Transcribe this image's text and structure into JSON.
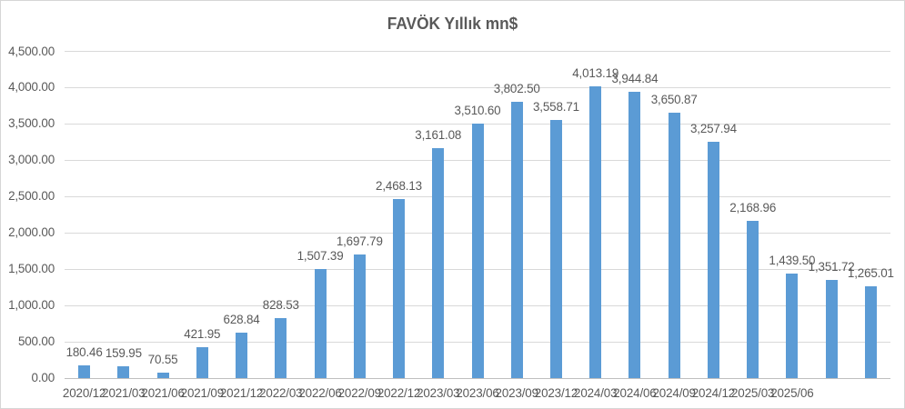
{
  "chart_data": {
    "type": "bar",
    "title": "FAVÖK Yıllık mn$",
    "xlabel": "",
    "ylabel": "",
    "categories": [
      "2020/12",
      "2021/03",
      "2021/06",
      "2021/09",
      "2021/12",
      "2022/03",
      "2022/06",
      "2022/09",
      "2022/12",
      "2023/03",
      "2023/06",
      "2023/09",
      "2023/12",
      "2024/03",
      "2024/06",
      "2024/09",
      "2024/12",
      "2025/03",
      "2025/06",
      "",
      ""
    ],
    "values": [
      180.46,
      159.95,
      70.55,
      421.95,
      628.84,
      828.53,
      1507.39,
      1697.79,
      2468.13,
      3161.08,
      3510.6,
      3802.5,
      3558.71,
      4013.19,
      3944.84,
      3650.87,
      3257.94,
      2168.96,
      1439.5,
      1351.72,
      1265.01
    ],
    "data_labels": [
      "180.46",
      "159.95",
      "70.55",
      "421.95",
      "628.84",
      "828.53",
      "1,507.39",
      "1,697.79",
      "2,468.13",
      "3,161.08",
      "3,510.60",
      "3,802.50",
      "3,558.71",
      "4,013.19",
      "3,944.84",
      "3,650.87",
      "3,257.94",
      "2,168.96",
      "1,439.50",
      "1,351.72",
      "1,265.01"
    ],
    "ylim": [
      0,
      4500
    ],
    "ytick_step": 500,
    "ytick_labels": [
      "0.00",
      "500.00",
      "1,000.00",
      "1,500.00",
      "2,000.00",
      "2,500.00",
      "3,000.00",
      "3,500.00",
      "4,000.00",
      "4,500.00"
    ],
    "grid": true,
    "legend": false,
    "colors": {
      "bar": "#5b9bd5",
      "text": "#595959",
      "gridline": "#d9d9d9",
      "axis_line": "#bfbfbf",
      "background": "#ffffff",
      "border": "#d6d6d6"
    }
  }
}
